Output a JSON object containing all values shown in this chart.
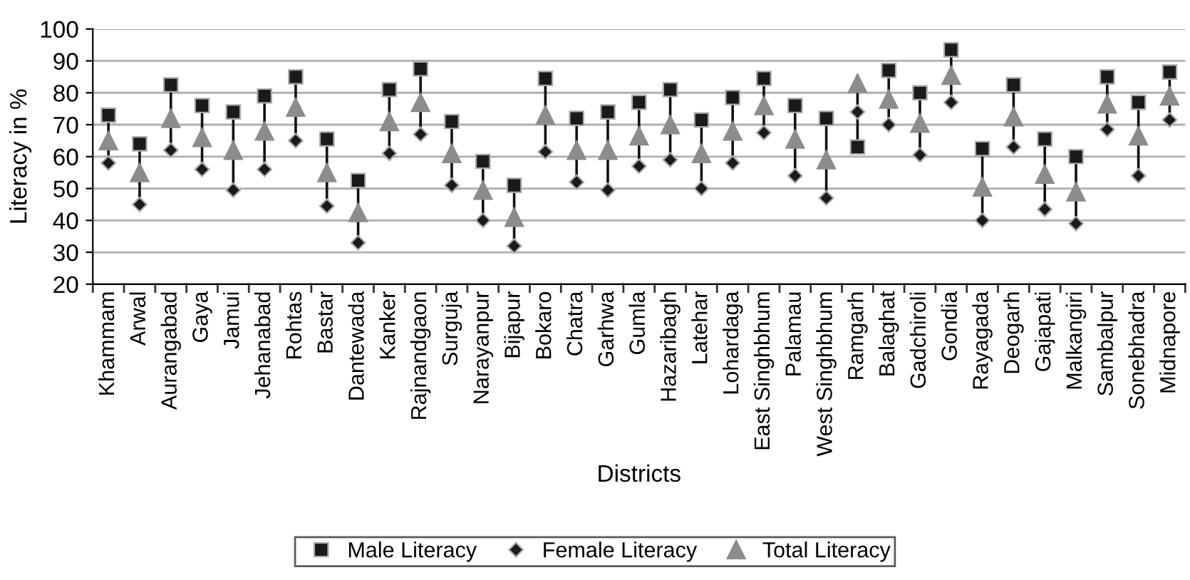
{
  "chart_data": {
    "type": "scatter",
    "xlabel": "Districts",
    "ylabel": "Literacy in %",
    "categories": [
      "Khammam",
      "Arwal",
      "Aurangabad",
      "Gaya",
      "Jamui",
      "Jehanabad",
      "Rohtas",
      "Bastar",
      "Dantewada",
      "Kanker",
      "Rajnandgaon",
      "Surguja",
      "Narayanpur",
      "Bijapur",
      "Bokaro",
      "Chatra",
      "Garhwa",
      "Gumla",
      "Hazaribagh",
      "Latehar",
      "Lohardaga",
      "East Singhbhum",
      "Palamau",
      "West Singhbhum",
      "Ramgarh",
      "Balaghat",
      "Gadchiroli",
      "Gondia",
      "Rayagada",
      "Deogarh",
      "Gajapati",
      "Malkangiri",
      "Sambalpur",
      "Sonebhadra",
      "Midnapore"
    ],
    "series": [
      {
        "name": "Male Literacy",
        "color": "#1a1a1a",
        "marker": "square",
        "values": [
          73,
          64,
          82.5,
          76,
          74,
          79,
          85,
          65.5,
          52.5,
          81,
          87.5,
          71,
          58.5,
          51,
          84.5,
          72,
          74,
          77,
          81,
          71.5,
          78.5,
          84.5,
          76,
          72,
          63,
          87,
          80,
          93.5,
          62.5,
          82.5,
          65.5,
          60,
          85,
          77,
          86.5
        ]
      },
      {
        "name": "Female Literacy",
        "color": "#1a1a1a",
        "marker": "diamond",
        "values": [
          58,
          45,
          62,
          56,
          49.5,
          56,
          65,
          44.5,
          33,
          61,
          67,
          51,
          40,
          32,
          61.5,
          52,
          49.5,
          57,
          59,
          50,
          58,
          67.5,
          54,
          47,
          74,
          70,
          60.5,
          77,
          40,
          63,
          43.5,
          39,
          68.5,
          54,
          71.5
        ]
      },
      {
        "name": "Total Literacy",
        "color": "#8c8c8c",
        "marker": "triangle",
        "values": [
          65,
          55,
          72,
          66,
          62,
          68,
          75.5,
          55,
          42.5,
          71,
          77,
          61,
          49.5,
          41,
          73,
          62,
          62,
          66.5,
          70,
          61,
          68,
          76,
          65.5,
          59,
          83,
          78,
          70.5,
          85.5,
          50.5,
          72.5,
          54.5,
          49,
          76.5,
          66.5,
          79
        ]
      }
    ],
    "ylim": [
      20,
      100
    ],
    "yticks": [
      20,
      30,
      40,
      50,
      60,
      70,
      80,
      90,
      100
    ],
    "grid": "y",
    "legend": "bottom"
  }
}
